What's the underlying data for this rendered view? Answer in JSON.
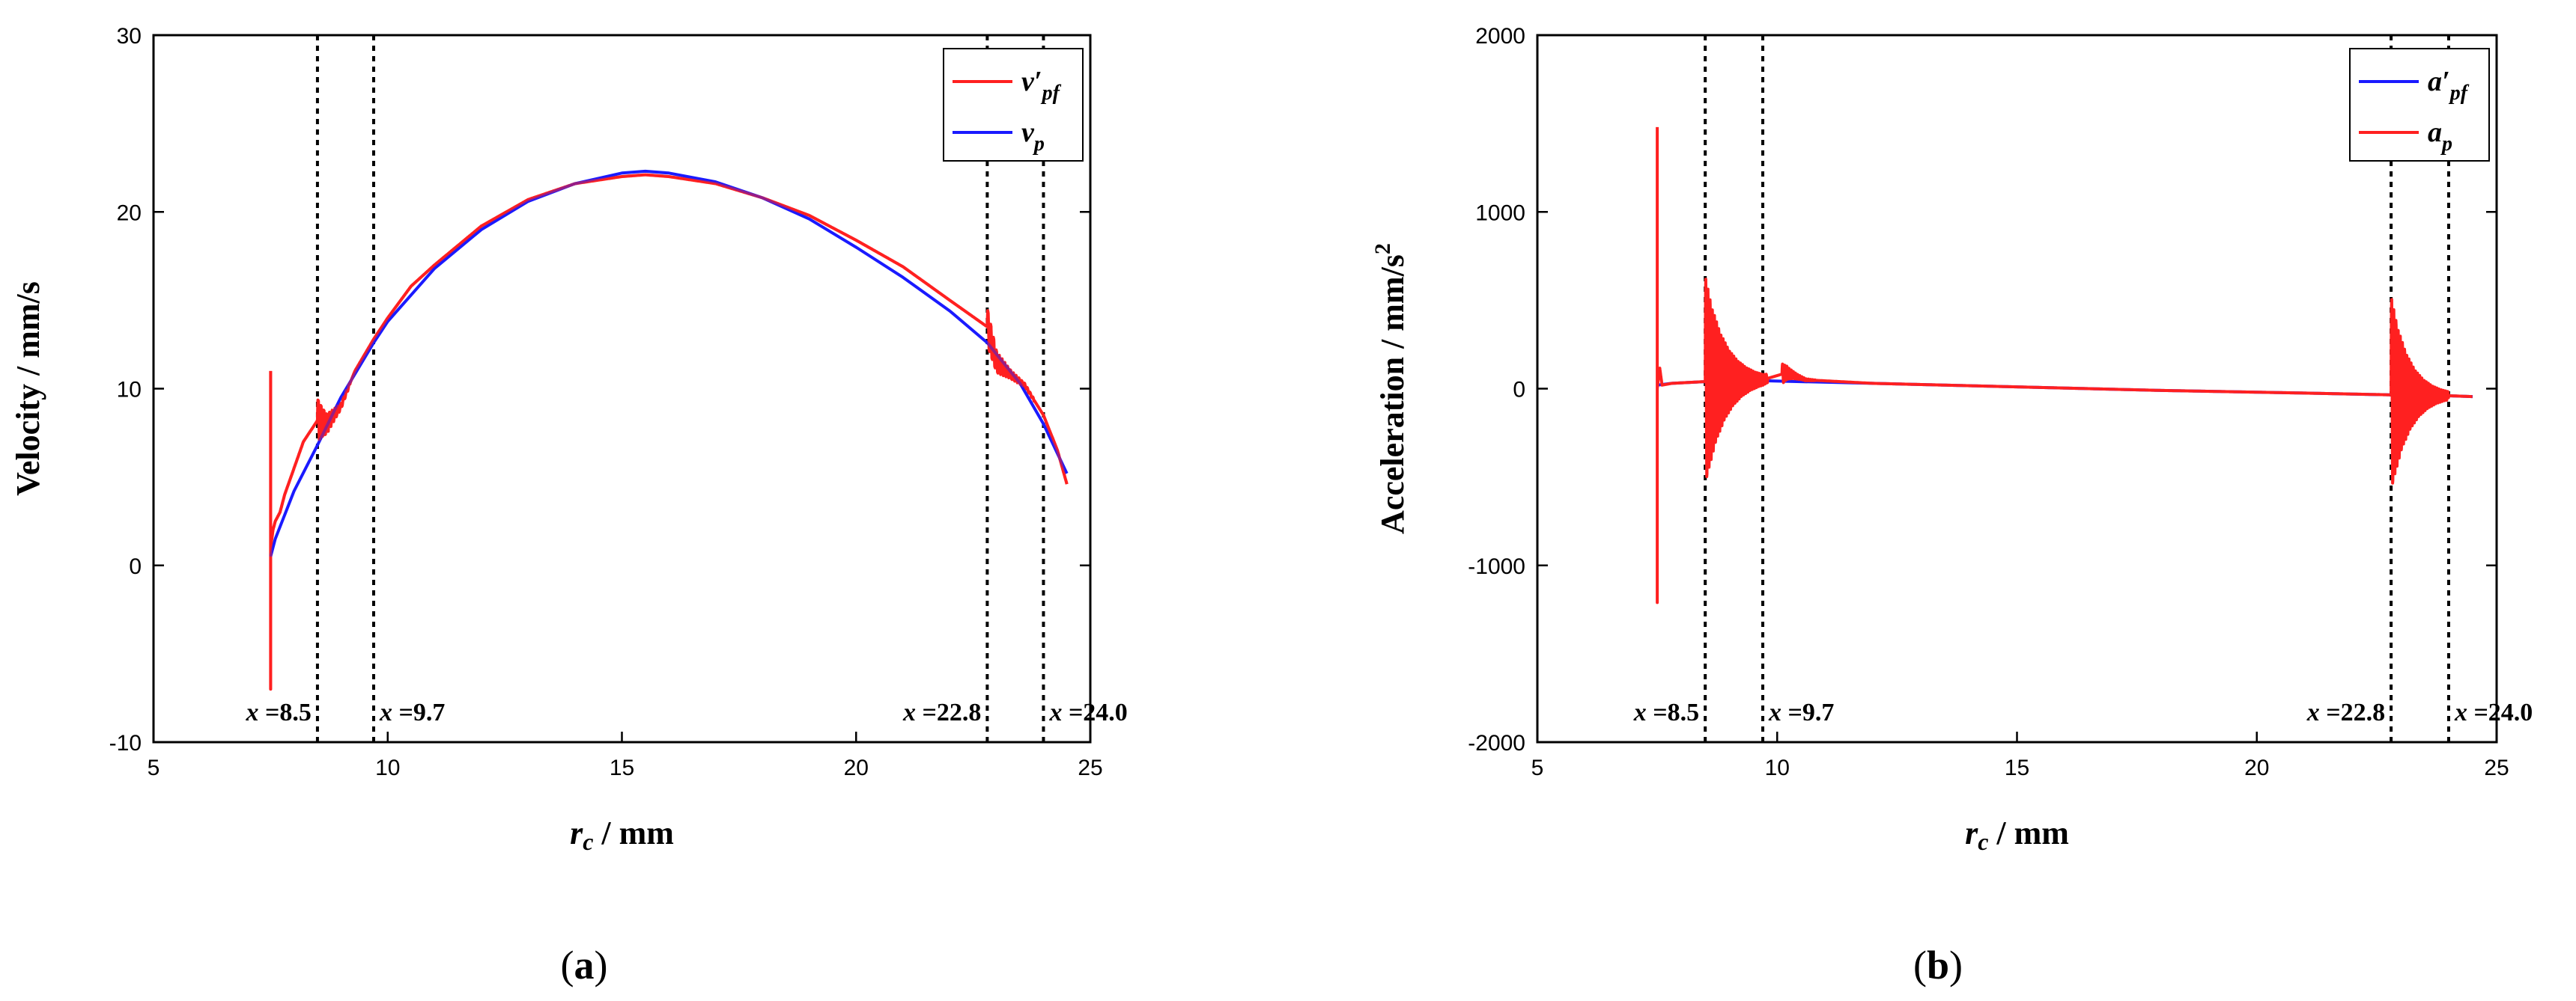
{
  "chart_data": [
    {
      "type": "line",
      "panel_label": "(a)",
      "panel_letter": "a",
      "xlabel": "r",
      "xlabel_sub": "c",
      "xlabel_unit": " / mm",
      "ylabel": "Velocity / mm/s",
      "xlim": [
        5,
        25
      ],
      "ylim": [
        -10,
        30
      ],
      "xticks": [
        5,
        10,
        15,
        20,
        25
      ],
      "yticks": [
        -10,
        0,
        10,
        20,
        30
      ],
      "legend_position": "top-right",
      "vlines": [
        {
          "x": 8.5,
          "label": "x =8.5"
        },
        {
          "x": 9.7,
          "label": "x =9.7"
        },
        {
          "x": 22.8,
          "label": "x =22.8"
        },
        {
          "x": 24.0,
          "label": "x =24.0"
        }
      ],
      "series": [
        {
          "name": "v′pf",
          "legend_main": "v′",
          "legend_sub": "pf",
          "color": "#ff2020",
          "x": [
            7.5,
            7.5,
            7.5,
            7.55,
            7.6,
            7.7,
            7.8,
            8.0,
            8.2,
            8.5,
            8.7,
            9.0,
            9.3,
            9.7,
            10.0,
            10.5,
            11.0,
            12.0,
            13.0,
            14.0,
            15.0,
            15.5,
            16.0,
            17.0,
            18.0,
            19.0,
            20.0,
            21.0,
            22.0,
            22.8,
            23.0,
            23.3,
            23.6,
            24.0,
            24.3,
            24.5
          ],
          "y": [
            11.0,
            -7.0,
            1.0,
            2.0,
            2.5,
            3.0,
            4.0,
            5.5,
            7.0,
            8.2,
            8.0,
            9.0,
            11.0,
            12.8,
            14.0,
            15.8,
            17.0,
            19.2,
            20.7,
            21.6,
            22.0,
            22.1,
            22.0,
            21.6,
            20.8,
            19.8,
            18.4,
            16.9,
            15.0,
            13.5,
            11.5,
            10.8,
            10.2,
            8.5,
            6.5,
            4.6
          ],
          "annotation": "oscillation bursts near x=8.5, 22.8"
        },
        {
          "name": "vp",
          "legend_main": "v",
          "legend_sub": "p",
          "color": "#1a1aff",
          "x": [
            7.5,
            7.6,
            8.0,
            8.5,
            9.0,
            9.7,
            10.0,
            11.0,
            12.0,
            13.0,
            14.0,
            15.0,
            15.5,
            16.0,
            17.0,
            18.0,
            19.0,
            20.0,
            21.0,
            22.0,
            22.8,
            23.5,
            24.0,
            24.5
          ],
          "y": [
            0.5,
            1.5,
            4.2,
            6.8,
            9.5,
            12.6,
            13.8,
            16.8,
            19.0,
            20.6,
            21.6,
            22.2,
            22.3,
            22.2,
            21.7,
            20.8,
            19.6,
            18.0,
            16.3,
            14.4,
            12.6,
            10.3,
            8.0,
            5.2
          ]
        }
      ]
    },
    {
      "type": "line",
      "panel_label": "(b)",
      "panel_letter": "b",
      "xlabel": "r",
      "xlabel_sub": "c",
      "xlabel_unit": " / mm",
      "ylabel": "Acceleration / mm/s",
      "ylabel_sup": "2",
      "xlim": [
        5,
        25
      ],
      "ylim": [
        -2000,
        2000
      ],
      "xticks": [
        5,
        10,
        15,
        20,
        25
      ],
      "yticks": [
        -2000,
        -1000,
        0,
        1000,
        2000
      ],
      "legend_position": "top-right",
      "vlines": [
        {
          "x": 8.5,
          "label": "x =8.5"
        },
        {
          "x": 9.7,
          "label": "x =9.7"
        },
        {
          "x": 22.8,
          "label": "x =22.8"
        },
        {
          "x": 24.0,
          "label": "x =24.0"
        }
      ],
      "series": [
        {
          "name": "a′pf",
          "legend_main": "a′",
          "legend_sub": "pf",
          "color": "#1a1aff",
          "x": [
            7.5,
            7.8,
            8.5,
            9.7,
            12.0,
            15.0,
            18.0,
            21.0,
            22.8,
            24.0,
            24.5
          ],
          "y": [
            20,
            30,
            40,
            45,
            30,
            10,
            -10,
            -25,
            -35,
            -40,
            -45
          ]
        },
        {
          "name": "ap",
          "legend_main": "a",
          "legend_sub": "p",
          "color": "#ff2020",
          "x": [
            7.5,
            7.5,
            7.5,
            7.55,
            7.6,
            7.8,
            8.5,
            9.0,
            9.7,
            10.2,
            10.6,
            12.0,
            15.0,
            18.0,
            21.0,
            22.8,
            23.3,
            24.0,
            24.5
          ],
          "y": [
            1480,
            -1210,
            0,
            120,
            20,
            30,
            40,
            45,
            50,
            90,
            50,
            30,
            10,
            -10,
            -25,
            -35,
            -40,
            -40,
            -45
          ],
          "bursts": [
            {
              "x_start": 8.5,
              "x_end": 9.8,
              "amplitude": 600
            },
            {
              "x_start": 10.1,
              "x_end": 10.8,
              "amplitude": 60
            },
            {
              "x_start": 22.8,
              "x_end": 24.0,
              "amplitude": 560
            }
          ]
        }
      ]
    }
  ]
}
